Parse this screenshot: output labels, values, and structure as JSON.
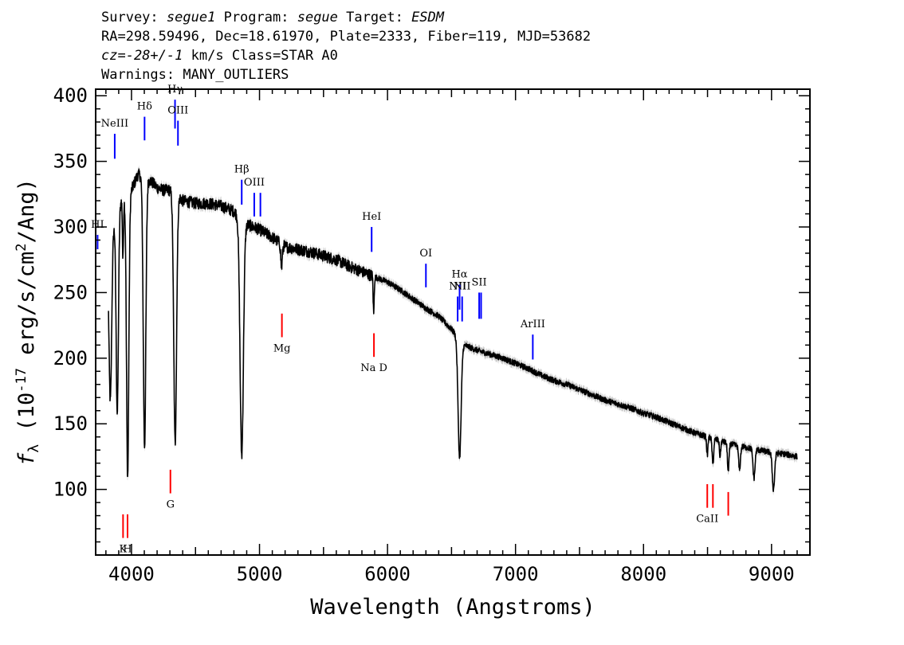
{
  "header": {
    "line1": {
      "survey_label": "Survey:",
      "survey": "segue1",
      "program_label": "Program:",
      "program": "segue",
      "target_label": "Target:",
      "target": "ESDM"
    },
    "line2": "RA=298.59496, Dec=18.61970, Plate=2333, Fiber=119, MJD=53682",
    "line3": {
      "cz_label": "cz=",
      "cz_value": "-28+/-1",
      "cz_unit": "km/s",
      "class_text": "Class=STAR A0"
    },
    "line4": "Warnings: MANY_OUTLIERS"
  },
  "chart_data": {
    "type": "line",
    "xlabel": "Wavelength (Angstroms)",
    "ylabel": "f_λ (10^-17 erg/s/cm^2/Ang)",
    "ylabel_parts": {
      "symbol": "f",
      "sub": "λ",
      "pre": " (10",
      "exp1": "-17",
      "mid": " erg/s/cm",
      "exp2": "2",
      "post": "/Ang)"
    },
    "xlim": [
      3720,
      9300
    ],
    "ylim": [
      50,
      405
    ],
    "x_ticks": [
      4000,
      5000,
      6000,
      7000,
      8000,
      9000
    ],
    "x_tick_labels": [
      "4000",
      "5000",
      "6000",
      "7000",
      "8000",
      "9000"
    ],
    "y_ticks": [
      100,
      150,
      200,
      250,
      300,
      350,
      400
    ],
    "y_tick_labels": [
      "100",
      "150",
      "200",
      "250",
      "300",
      "350",
      "400"
    ],
    "spectrum": {
      "color": "#000000",
      "error_color": "#aaaaaa",
      "continuum": [
        [
          3820,
          272
        ],
        [
          3860,
          300
        ],
        [
          3900,
          318
        ],
        [
          3950,
          322
        ],
        [
          4000,
          328
        ],
        [
          4050,
          340
        ],
        [
          4100,
          338
        ],
        [
          4150,
          335
        ],
        [
          4200,
          330
        ],
        [
          4250,
          328
        ],
        [
          4300,
          328
        ],
        [
          4350,
          325
        ],
        [
          4400,
          320
        ],
        [
          4500,
          318
        ],
        [
          4600,
          318
        ],
        [
          4700,
          316
        ],
        [
          4800,
          312
        ],
        [
          4900,
          302
        ],
        [
          5000,
          298
        ],
        [
          5100,
          292
        ],
        [
          5200,
          285
        ],
        [
          5300,
          283
        ],
        [
          5400,
          281
        ],
        [
          5500,
          278
        ],
        [
          5600,
          275
        ],
        [
          5700,
          270
        ],
        [
          5800,
          266
        ],
        [
          5900,
          262
        ],
        [
          6000,
          258
        ],
        [
          6100,
          252
        ],
        [
          6200,
          245
        ],
        [
          6300,
          238
        ],
        [
          6400,
          232
        ],
        [
          6500,
          222
        ],
        [
          6600,
          210
        ],
        [
          6700,
          206
        ],
        [
          6800,
          203
        ],
        [
          6900,
          200
        ],
        [
          7000,
          196
        ],
        [
          7100,
          192
        ],
        [
          7200,
          187
        ],
        [
          7300,
          183
        ],
        [
          7400,
          180
        ],
        [
          7500,
          176
        ],
        [
          7600,
          172
        ],
        [
          7700,
          168
        ],
        [
          7800,
          165
        ],
        [
          7900,
          162
        ],
        [
          8000,
          158
        ],
        [
          8100,
          155
        ],
        [
          8200,
          151
        ],
        [
          8300,
          147
        ],
        [
          8400,
          143
        ],
        [
          8500,
          140
        ],
        [
          8600,
          137
        ],
        [
          8700,
          134
        ],
        [
          8800,
          132
        ],
        [
          8900,
          130
        ],
        [
          9000,
          128
        ],
        [
          9100,
          127
        ],
        [
          9200,
          125
        ]
      ],
      "absorption": [
        [
          3835,
          115,
          10
        ],
        [
          3889,
          155,
          9
        ],
        [
          3933,
          45,
          4
        ],
        [
          3970,
          215,
          9
        ],
        [
          4102,
          205,
          10
        ],
        [
          4341,
          190,
          11
        ],
        [
          4861,
          180,
          13
        ],
        [
          5172,
          18,
          6
        ],
        [
          5892,
          28,
          4
        ],
        [
          6563,
          90,
          12
        ],
        [
          8498,
          14,
          5
        ],
        [
          8542,
          20,
          6
        ],
        [
          8598,
          12,
          5
        ],
        [
          8662,
          22,
          6
        ],
        [
          8750,
          18,
          7
        ],
        [
          8863,
          22,
          8
        ],
        [
          9015,
          28,
          9
        ]
      ]
    },
    "lines": {
      "emission_color": "#0000ff",
      "absorption_color": "#ff0000",
      "label_color": "#000000",
      "emission": [
        {
          "label": "HI",
          "w": 3735,
          "y0": 294,
          "y1": 283
        },
        {
          "label": "NeIII",
          "w": 3869,
          "y0": 371,
          "y1": 352
        },
        {
          "label": "Hδ",
          "w": 4102,
          "y0": 384,
          "y1": 366
        },
        {
          "label": "Hγ",
          "w": 4340,
          "y0": 397,
          "y1": 375
        },
        {
          "label": "OIII",
          "w": 4363,
          "y0": 381,
          "y1": 362
        },
        {
          "label": "Hβ",
          "w": 4861,
          "y0": 336,
          "y1": 317
        },
        {
          "label": "OIII",
          "w": 4959,
          "y0": 326,
          "y1": 308
        },
        {
          "label": "",
          "w": 5007,
          "y0": 326,
          "y1": 308
        },
        {
          "label": "HeI",
          "w": 5876,
          "y0": 300,
          "y1": 281
        },
        {
          "label": "OI",
          "w": 6300,
          "y0": 272,
          "y1": 254
        },
        {
          "label": "NII",
          "w": 6548,
          "y0": 247,
          "y1": 228
        },
        {
          "label": "Hα",
          "w": 6563,
          "y0": 256,
          "y1": 237
        },
        {
          "label": "NII",
          "w": 6583,
          "y0": 247,
          "y1": 228
        },
        {
          "label": "SII",
          "w": 6716,
          "y0": 250,
          "y1": 230
        },
        {
          "label": "",
          "w": 6731,
          "y0": 250,
          "y1": 230
        },
        {
          "label": "ArIII",
          "w": 7135,
          "y0": 218,
          "y1": 199
        }
      ],
      "absorption": [
        {
          "label": "K",
          "w": 3934,
          "y0": 81,
          "y1": 63
        },
        {
          "label": "H",
          "w": 3969,
          "y0": 81,
          "y1": 63
        },
        {
          "label": "G",
          "w": 4304,
          "y0": 115,
          "y1": 97
        },
        {
          "label": "Mg",
          "w": 5175,
          "y0": 234,
          "y1": 216
        },
        {
          "label": "Na D",
          "w": 5894,
          "y0": 219,
          "y1": 201
        },
        {
          "label": "CaII",
          "w": 8498,
          "y0": 104,
          "y1": 86
        },
        {
          "label": "",
          "w": 8542,
          "y0": 104,
          "y1": 86
        },
        {
          "label": "",
          "w": 8662,
          "y0": 98,
          "y1": 80
        }
      ]
    }
  }
}
